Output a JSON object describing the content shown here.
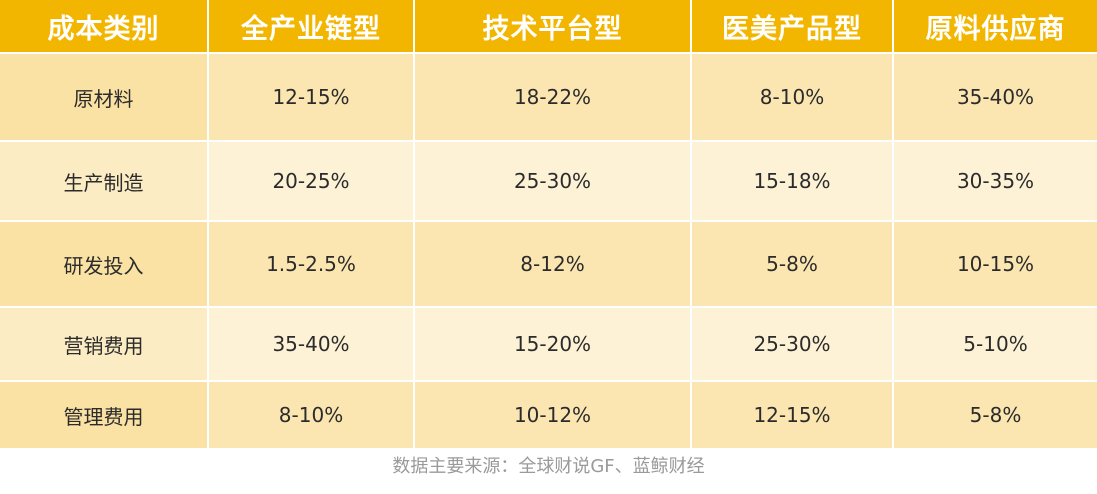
{
  "table": {
    "headers": [
      "成本类别",
      "全产业链型",
      "技术平台型",
      "医美产品型",
      "原料供应商"
    ],
    "rows": [
      [
        "原材料",
        "12-15%",
        "18-22%",
        "8-10%",
        "35-40%"
      ],
      [
        "生产制造",
        "20-25%",
        "25-30%",
        "15-18%",
        "30-35%"
      ],
      [
        "研发投入",
        "1.5-2.5%",
        "8-12%",
        "5-8%",
        "10-15%"
      ],
      [
        "营销费用",
        "35-40%",
        "15-20%",
        "25-30%",
        "5-10%"
      ],
      [
        "管理费用",
        "8-10%",
        "10-12%",
        "12-15%",
        "5-8%"
      ]
    ]
  },
  "source_note": "数据主要来源：全球财说GF、蓝鲸财经",
  "colors": {
    "header_bg": "#f2b600",
    "row_dark": "#fbe6b2",
    "row_light": "#fdf2d6",
    "source_text": "#9a9a9a"
  }
}
